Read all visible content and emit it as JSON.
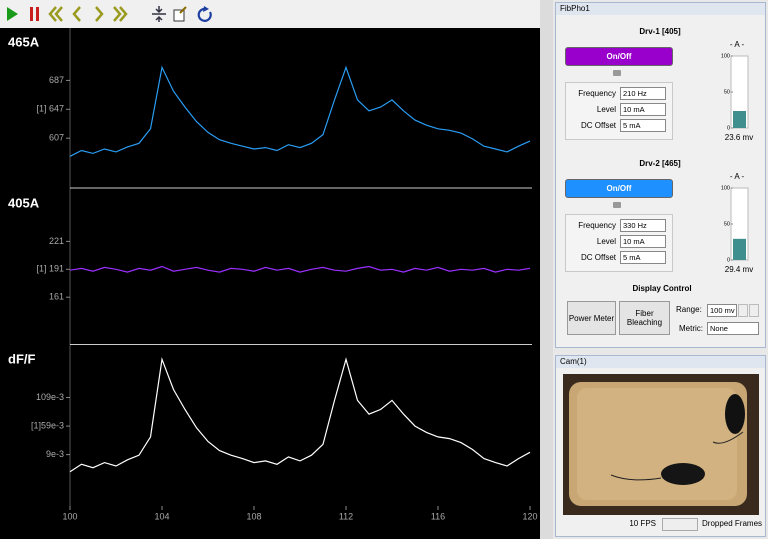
{
  "chart_data": [
    {
      "type": "line",
      "title": "465A",
      "x": [
        100,
        100.5,
        101,
        101.5,
        102,
        102.5,
        103,
        103.5,
        104,
        104.5,
        105,
        105.5,
        106,
        106.5,
        107,
        107.5,
        108,
        108.5,
        109,
        109.5,
        110,
        110.5,
        111,
        111.5,
        112,
        112.5,
        113,
        113.5,
        114,
        114.5,
        115,
        115.5,
        116,
        116.5,
        117,
        117.5,
        118,
        118.5,
        119,
        119.5,
        120
      ],
      "series": [
        {
          "color": "#2a9df4",
          "values": [
            582,
            590,
            586,
            592,
            588,
            595,
            600,
            620,
            705,
            672,
            650,
            630,
            615,
            605,
            600,
            596,
            592,
            594,
            590,
            598,
            594,
            600,
            612,
            660,
            705,
            660,
            645,
            650,
            660,
            645,
            632,
            625,
            620,
            618,
            614,
            606,
            596,
            592,
            588,
            596,
            603
          ]
        }
      ],
      "xlim": [
        100,
        120
      ],
      "ylim": [
        545,
        754
      ],
      "yticks": [
        607,
        {
          "value": 647,
          "label": "[1] 647"
        },
        687
      ]
    },
    {
      "type": "line",
      "title": "405A",
      "x": [
        100,
        100.5,
        101,
        101.5,
        102,
        102.5,
        103,
        103.5,
        104,
        104.5,
        105,
        105.5,
        106,
        106.5,
        107,
        107.5,
        108,
        108.5,
        109,
        109.5,
        110,
        110.5,
        111,
        111.5,
        112,
        112.5,
        113,
        113.5,
        114,
        114.5,
        115,
        115.5,
        116,
        116.5,
        117,
        117.5,
        118,
        118.5,
        119,
        119.5,
        120
      ],
      "series": [
        {
          "color": "#9b30ff",
          "values": [
            190,
            192,
            189,
            193,
            191,
            188,
            192,
            190,
            194,
            189,
            191,
            193,
            190,
            188,
            192,
            191,
            189,
            193,
            190,
            192,
            188,
            191,
            193,
            190,
            189,
            192,
            194,
            190,
            191,
            188,
            192,
            190,
            193,
            189,
            191,
            190,
            192,
            188,
            191,
            190,
            192
          ]
        }
      ],
      "xlim": [
        100,
        120
      ],
      "ylim": [
        115,
        273
      ],
      "yticks": [
        161,
        {
          "value": 191,
          "label": "[1] 191"
        },
        221
      ]
    },
    {
      "type": "line",
      "title": "dF/F",
      "x": [
        100,
        100.5,
        101,
        101.5,
        102,
        102.5,
        103,
        103.5,
        104,
        104.5,
        105,
        105.5,
        106,
        106.5,
        107,
        107.5,
        108,
        108.5,
        109,
        109.5,
        110,
        110.5,
        111,
        111.5,
        112,
        112.5,
        113,
        113.5,
        114,
        114.5,
        115,
        115.5,
        116,
        116.5,
        117,
        117.5,
        118,
        118.5,
        119,
        119.5,
        120
      ],
      "series": [
        {
          "color": "#ffffff",
          "values": [
            -0.021,
            -0.008,
            -0.014,
            -0.005,
            -0.011,
            0,
            0.008,
            0.04,
            0.176,
            0.123,
            0.088,
            0.056,
            0.032,
            0.016,
            0.008,
            0.002,
            -0.005,
            -0.002,
            -0.008,
            0.005,
            -0.002,
            0.008,
            0.027,
            0.104,
            0.176,
            0.104,
            0.08,
            0.088,
            0.104,
            0.08,
            0.059,
            0.048,
            0.04,
            0.037,
            0.03,
            0.018,
            0.002,
            -0.005,
            -0.011,
            0.002,
            0.013
          ]
        }
      ],
      "xlim": [
        100,
        120
      ],
      "ylim": [
        -0.081,
        0.194
      ],
      "yticks": [
        {
          "value": 0.009,
          "label": "9e-3"
        },
        {
          "value": 0.059,
          "label": "[1]59e-3"
        },
        {
          "value": 0.109,
          "label": "109e-3"
        }
      ],
      "xticks": [
        100,
        104,
        108,
        112,
        116,
        120
      ]
    }
  ],
  "fibpho": {
    "title": "FibPho1",
    "drivers": [
      {
        "title": "Drv-1  [405]",
        "button": "On/Off",
        "button_color": "#9900cc",
        "fields": [
          {
            "label": "Frequency",
            "value": "210 Hz"
          },
          {
            "label": "Level",
            "value": "10 mA"
          },
          {
            "label": "DC Offset",
            "value": "5 mA"
          }
        ],
        "meter": {
          "title": "- A -",
          "ylim": [
            0,
            100
          ],
          "yticks": [
            0,
            50,
            100
          ],
          "value": 23.6,
          "value_label": "23.6 mv"
        }
      },
      {
        "title": "Drv-2  [465]",
        "button": "On/Off",
        "button_color": "#1e90ff",
        "fields": [
          {
            "label": "Frequency",
            "value": "330 Hz"
          },
          {
            "label": "Level",
            "value": "10 mA"
          },
          {
            "label": "DC Offset",
            "value": "5 mA"
          }
        ],
        "meter": {
          "title": "- A -",
          "ylim": [
            0,
            100
          ],
          "yticks": [
            0,
            50,
            100
          ],
          "value": 29.4,
          "value_label": "29.4 mv"
        }
      }
    ],
    "display_control": {
      "title": "Display Control",
      "buttons": [
        "Power Meter",
        "Fiber Bleaching"
      ],
      "range_label": "Range:",
      "range_value": "100 mv",
      "metric_label": "Metric:",
      "metric_value": "None"
    }
  },
  "camera": {
    "title": "Cam(1)",
    "fps": "10 FPS",
    "dropped": "Dropped Frames"
  }
}
